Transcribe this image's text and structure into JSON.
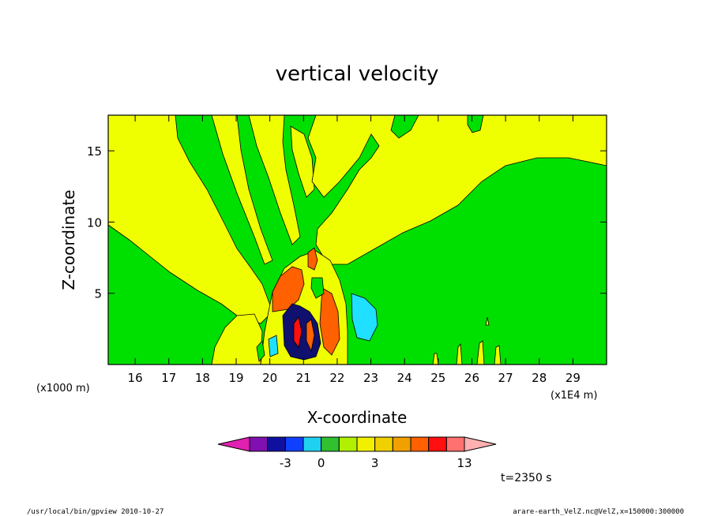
{
  "chart_data": {
    "type": "heatmap",
    "title": "vertical velocity",
    "xlabel": "X-coordinate",
    "ylabel": "Z-coordinate",
    "x_unit_left": "(x1000 m)",
    "x_unit_right": "(x1E4 m)",
    "xlim": [
      15.2,
      30.0
    ],
    "ylim": [
      0.0,
      17.5
    ],
    "x_ticks": [
      16,
      17,
      18,
      19,
      20,
      21,
      22,
      23,
      24,
      25,
      26,
      27,
      28,
      29
    ],
    "y_ticks": [
      5,
      10,
      15
    ],
    "colorbar": {
      "colors": [
        "#e020b0",
        "#8010b0",
        "#1010a0",
        "#1040ff",
        "#20d0f0",
        "#30c030",
        "#b0f000",
        "#f0f000",
        "#f0d000",
        "#f0a000",
        "#ff6000",
        "#ff1010",
        "#ff7070",
        "#ffb0b0"
      ],
      "labels": [
        {
          "text": "-3",
          "index": 3
        },
        {
          "text": "0",
          "index": 5
        },
        {
          "text": "3",
          "index": 8
        },
        {
          "text": "13",
          "index": 13
        }
      ]
    },
    "time_label": "t=2350 s"
  },
  "colors": {
    "green": "#00e000",
    "yellow": "#f0ff00",
    "orange": "#ff6000",
    "cyan": "#20e0ff",
    "navy": "#10106e",
    "red": "#ff1010"
  },
  "footer": {
    "left": "/usr/local/bin/gpview   2010-10-27",
    "right": "arare-earth_VelZ.nc@VelZ,x=150000:300000"
  }
}
